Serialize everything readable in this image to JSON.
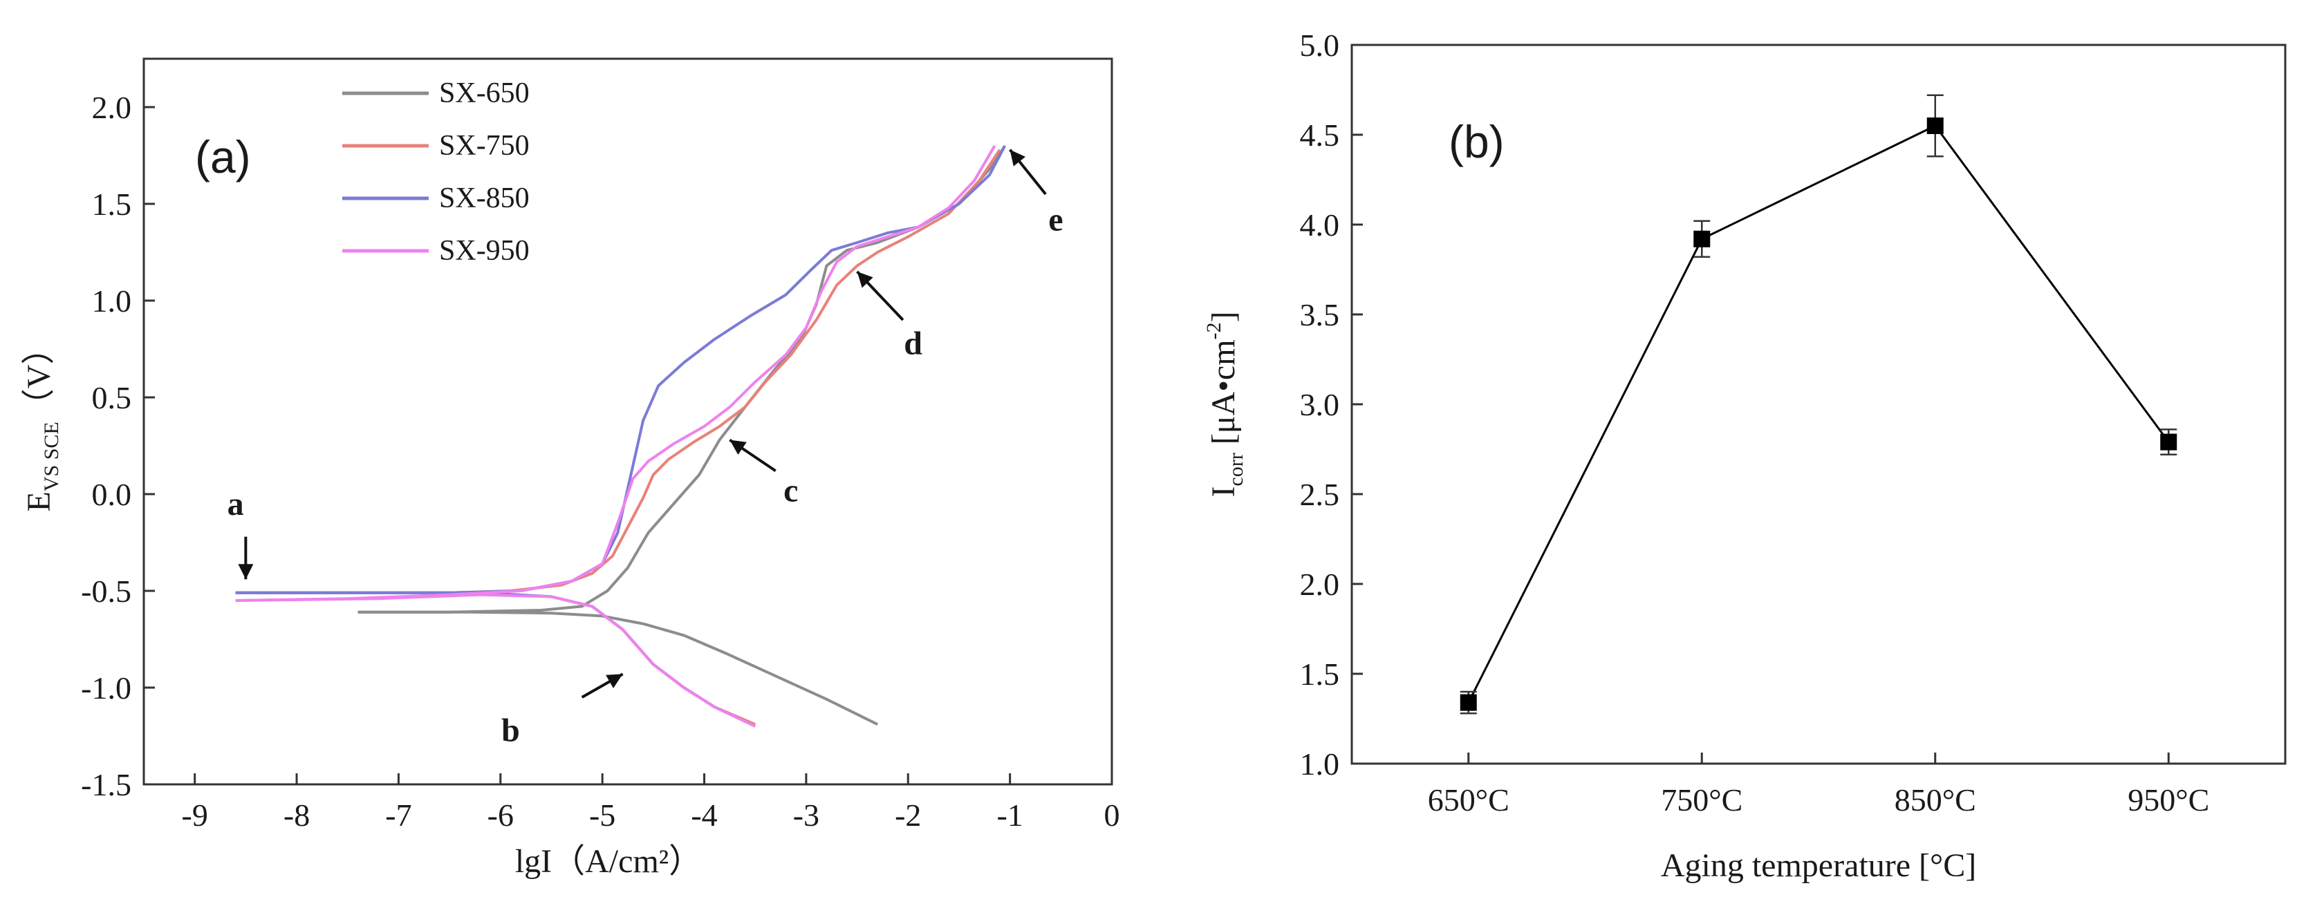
{
  "chart_data": [
    {
      "type": "line",
      "panel_label": "(a)",
      "xlabel": "lgI（A/cm²）",
      "ylabel": "E_VS SCE（V）",
      "ylabel_main": "E",
      "ylabel_sub": "VS SCE",
      "ylabel_unit": "（V）",
      "xlim": [
        -9.5,
        0
      ],
      "ylim": [
        -1.5,
        2.25
      ],
      "x_ticks": [
        "-9",
        "-8",
        "-7",
        "-6",
        "-5",
        "-4",
        "-3",
        "-2",
        "-1",
        "0"
      ],
      "y_ticks": [
        "-1.5",
        "-1.0",
        "-0.5",
        "0.0",
        "0.5",
        "1.0",
        "1.5",
        "2.0"
      ],
      "legend": [
        "SX-650",
        "SX-750",
        "SX-850",
        "SX-950"
      ],
      "legend_position": "top-left",
      "series": [
        {
          "name": "SX-650",
          "color": "#8c8c8c",
          "anodic": [
            [
              -7.4,
              -0.61
            ],
            [
              -6.5,
              -0.61
            ],
            [
              -5.6,
              -0.6
            ],
            [
              -5.2,
              -0.58
            ],
            [
              -4.95,
              -0.5
            ],
            [
              -4.75,
              -0.38
            ],
            [
              -4.55,
              -0.2
            ],
            [
              -4.3,
              -0.05
            ],
            [
              -4.05,
              0.1
            ],
            [
              -3.85,
              0.28
            ],
            [
              -3.6,
              0.45
            ],
            [
              -3.3,
              0.65
            ],
            [
              -3.05,
              0.8
            ],
            [
              -2.9,
              0.98
            ],
            [
              -2.8,
              1.18
            ],
            [
              -2.6,
              1.26
            ],
            [
              -2.3,
              1.3
            ],
            [
              -1.9,
              1.38
            ],
            [
              -1.5,
              1.5
            ],
            [
              -1.2,
              1.68
            ],
            [
              -1.05,
              1.8
            ]
          ],
          "cathodic": [
            [
              -7.4,
              -0.61
            ],
            [
              -6.3,
              -0.61
            ],
            [
              -5.5,
              -0.615
            ],
            [
              -5.0,
              -0.63
            ],
            [
              -4.6,
              -0.67
            ],
            [
              -4.2,
              -0.73
            ],
            [
              -3.8,
              -0.82
            ],
            [
              -3.3,
              -0.94
            ],
            [
              -2.8,
              -1.06
            ],
            [
              -2.3,
              -1.19
            ]
          ]
        },
        {
          "name": "SX-750",
          "color": "#e8827a",
          "anodic": [
            [
              -8.6,
              -0.51
            ],
            [
              -7.5,
              -0.51
            ],
            [
              -6.5,
              -0.51
            ],
            [
              -5.9,
              -0.5
            ],
            [
              -5.4,
              -0.47
            ],
            [
              -5.1,
              -0.41
            ],
            [
              -4.9,
              -0.32
            ],
            [
              -4.75,
              -0.17
            ],
            [
              -4.6,
              -0.02
            ],
            [
              -4.5,
              0.1
            ],
            [
              -4.35,
              0.18
            ],
            [
              -4.1,
              0.27
            ],
            [
              -3.85,
              0.35
            ],
            [
              -3.6,
              0.45
            ],
            [
              -3.4,
              0.58
            ],
            [
              -3.15,
              0.72
            ],
            [
              -2.9,
              0.9
            ],
            [
              -2.7,
              1.08
            ],
            [
              -2.5,
              1.18
            ],
            [
              -2.3,
              1.25
            ],
            [
              -2.0,
              1.33
            ],
            [
              -1.6,
              1.45
            ],
            [
              -1.3,
              1.62
            ],
            [
              -1.1,
              1.78
            ]
          ],
          "cathodic": [
            [
              -8.6,
              -0.51
            ],
            [
              -7.2,
              -0.51
            ],
            [
              -6.2,
              -0.51
            ],
            [
              -5.5,
              -0.53
            ],
            [
              -5.1,
              -0.58
            ],
            [
              -4.8,
              -0.7
            ],
            [
              -4.5,
              -0.88
            ],
            [
              -4.2,
              -1.0
            ],
            [
              -3.9,
              -1.1
            ],
            [
              -3.5,
              -1.19
            ]
          ]
        },
        {
          "name": "SX-850",
          "color": "#7b7bd6",
          "anodic": [
            [
              -8.6,
              -0.51
            ],
            [
              -7.5,
              -0.51
            ],
            [
              -6.5,
              -0.51
            ],
            [
              -5.8,
              -0.5
            ],
            [
              -5.3,
              -0.45
            ],
            [
              -5.0,
              -0.36
            ],
            [
              -4.85,
              -0.2
            ],
            [
              -4.72,
              0.1
            ],
            [
              -4.6,
              0.38
            ],
            [
              -4.45,
              0.56
            ],
            [
              -4.2,
              0.68
            ],
            [
              -3.9,
              0.8
            ],
            [
              -3.55,
              0.92
            ],
            [
              -3.2,
              1.03
            ],
            [
              -2.95,
              1.16
            ],
            [
              -2.75,
              1.26
            ],
            [
              -2.5,
              1.3
            ],
            [
              -2.2,
              1.35
            ],
            [
              -1.9,
              1.38
            ],
            [
              -1.5,
              1.5
            ],
            [
              -1.2,
              1.65
            ],
            [
              -1.05,
              1.8
            ]
          ],
          "cathodic": [
            [
              -8.6,
              -0.51
            ],
            [
              -7.2,
              -0.51
            ],
            [
              -6.2,
              -0.51
            ],
            [
              -5.5,
              -0.53
            ],
            [
              -5.1,
              -0.58
            ],
            [
              -4.8,
              -0.7
            ],
            [
              -4.5,
              -0.88
            ],
            [
              -4.2,
              -1.0
            ],
            [
              -3.9,
              -1.1
            ],
            [
              -3.5,
              -1.2
            ]
          ]
        },
        {
          "name": "SX-950",
          "color": "#ee82ee",
          "anodic": [
            [
              -8.6,
              -0.55
            ],
            [
              -7.5,
              -0.54
            ],
            [
              -6.5,
              -0.52
            ],
            [
              -5.8,
              -0.5
            ],
            [
              -5.3,
              -0.45
            ],
            [
              -5.0,
              -0.36
            ],
            [
              -4.85,
              -0.15
            ],
            [
              -4.7,
              0.08
            ],
            [
              -4.55,
              0.17
            ],
            [
              -4.3,
              0.26
            ],
            [
              -4.0,
              0.35
            ],
            [
              -3.75,
              0.45
            ],
            [
              -3.5,
              0.58
            ],
            [
              -3.2,
              0.72
            ],
            [
              -3.0,
              0.86
            ],
            [
              -2.85,
              1.05
            ],
            [
              -2.7,
              1.2
            ],
            [
              -2.5,
              1.28
            ],
            [
              -2.2,
              1.33
            ],
            [
              -1.9,
              1.38
            ],
            [
              -1.6,
              1.48
            ],
            [
              -1.35,
              1.62
            ],
            [
              -1.15,
              1.8
            ]
          ],
          "cathodic": [
            [
              -8.6,
              -0.55
            ],
            [
              -7.2,
              -0.54
            ],
            [
              -6.2,
              -0.52
            ],
            [
              -5.5,
              -0.53
            ],
            [
              -5.1,
              -0.58
            ],
            [
              -4.8,
              -0.7
            ],
            [
              -4.5,
              -0.88
            ],
            [
              -4.2,
              -1.0
            ],
            [
              -3.9,
              -1.1
            ],
            [
              -3.5,
              -1.2
            ]
          ]
        }
      ],
      "annotations": [
        {
          "label": "a",
          "x": -8.55,
          "y": -0.45
        },
        {
          "label": "b",
          "x": -4.8,
          "y": -0.92
        },
        {
          "label": "c",
          "x": -3.7,
          "y": 0.28
        },
        {
          "label": "d",
          "x": -2.5,
          "y": 1.15
        },
        {
          "label": "e",
          "x": -1.0,
          "y": 1.8
        }
      ]
    },
    {
      "type": "line",
      "panel_label": "(b)",
      "xlabel": "Aging temperature [°C]",
      "ylabel": "I_corr [μA•cm⁻²]",
      "ylabel_main": "I",
      "ylabel_sub": "corr",
      "ylabel_unit": " [μA•cm",
      "ylabel_sup": "-2",
      "ylabel_close": "]",
      "categories": [
        "650°C",
        "750°C",
        "850°C",
        "950°C"
      ],
      "values": [
        1.34,
        3.92,
        4.55,
        2.79
      ],
      "errors": [
        0.06,
        0.1,
        0.17,
        0.07
      ],
      "ylim": [
        1.0,
        5.0
      ],
      "y_ticks": [
        "1.0",
        "1.5",
        "2.0",
        "2.5",
        "3.0",
        "3.5",
        "4.0",
        "4.5",
        "5.0"
      ],
      "marker": "square",
      "color": "#000000"
    }
  ]
}
